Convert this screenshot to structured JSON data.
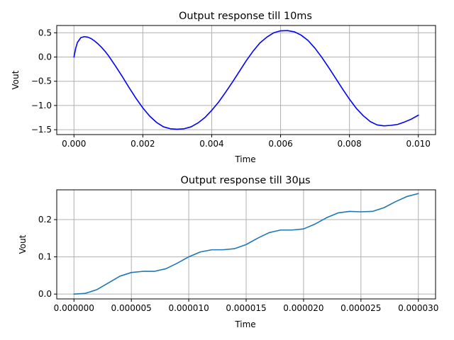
{
  "chart_data": [
    {
      "type": "line",
      "title": "Output response till 10ms",
      "xlabel": "Time",
      "ylabel": "Vout",
      "xlim": [
        -0.0005,
        0.0105
      ],
      "ylim": [
        -1.6,
        0.65
      ],
      "xticks": [
        0.0,
        0.002,
        0.004,
        0.006,
        0.008,
        0.01
      ],
      "xtick_labels": [
        "0.000",
        "0.002",
        "0.004",
        "0.006",
        "0.008",
        "0.010"
      ],
      "yticks": [
        0.5,
        0.0,
        -0.5,
        -1.0,
        -1.5
      ],
      "ytick_labels": [
        "0.5",
        "0.0",
        "−0.5",
        "−1.0",
        "−1.5"
      ],
      "grid": true,
      "series": [
        {
          "color": "#0000ff",
          "x": [
            0.0,
            5e-05,
            0.0001,
            0.0002,
            0.0003,
            0.0004,
            0.0005,
            0.0006,
            0.0007,
            0.0008,
            0.0009,
            0.001,
            0.0012,
            0.0014,
            0.0016,
            0.0018,
            0.002,
            0.0022,
            0.0024,
            0.0026,
            0.0028,
            0.003,
            0.0032,
            0.0034,
            0.0036,
            0.0038,
            0.004,
            0.0042,
            0.0044,
            0.0046,
            0.0048,
            0.005,
            0.0052,
            0.0054,
            0.0056,
            0.0058,
            0.006,
            0.0062,
            0.0064,
            0.0066,
            0.0068,
            0.007,
            0.0072,
            0.0074,
            0.0076,
            0.0078,
            0.008,
            0.0082,
            0.0084,
            0.0086,
            0.0088,
            0.009,
            0.0092,
            0.0094,
            0.0096,
            0.0098,
            0.01
          ],
          "y": [
            0.0,
            0.18,
            0.3,
            0.4,
            0.42,
            0.41,
            0.38,
            0.33,
            0.27,
            0.2,
            0.12,
            0.03,
            -0.18,
            -0.4,
            -0.63,
            -0.85,
            -1.05,
            -1.22,
            -1.35,
            -1.44,
            -1.48,
            -1.49,
            -1.48,
            -1.44,
            -1.36,
            -1.25,
            -1.1,
            -0.93,
            -0.73,
            -0.52,
            -0.3,
            -0.08,
            0.12,
            0.29,
            0.41,
            0.5,
            0.54,
            0.545,
            0.52,
            0.45,
            0.34,
            0.18,
            -0.01,
            -0.22,
            -0.44,
            -0.66,
            -0.87,
            -1.06,
            -1.21,
            -1.33,
            -1.4,
            -1.42,
            -1.41,
            -1.39,
            -1.34,
            -1.28,
            -1.2
          ]
        }
      ]
    },
    {
      "type": "line",
      "title": "Output response till 30µs",
      "xlabel": "Time",
      "ylabel": "Vout",
      "xlim": [
        -1.5e-06,
        3.15e-05
      ],
      "ylim": [
        -0.013,
        0.28
      ],
      "xticks": [
        0.0,
        5e-06,
        1e-05,
        1.5e-05,
        2e-05,
        2.5e-05,
        3e-05
      ],
      "xtick_labels": [
        "0.000000",
        "0.000005",
        "0.000010",
        "0.000015",
        "0.000020",
        "0.000025",
        "0.000030"
      ],
      "yticks": [
        0.0,
        0.1,
        0.2
      ],
      "ytick_labels": [
        "0.0",
        "0.1",
        "0.2"
      ],
      "grid": true,
      "series": [
        {
          "color": "#1f77b4",
          "x": [
            0.0,
            1e-06,
            2e-06,
            3e-06,
            4e-06,
            5e-06,
            6e-06,
            7e-06,
            8e-06,
            9e-06,
            1e-05,
            1.1e-05,
            1.2e-05,
            1.3e-05,
            1.4e-05,
            1.5e-05,
            1.6e-05,
            1.7e-05,
            1.8e-05,
            1.9e-05,
            2e-05,
            2.1e-05,
            2.2e-05,
            2.3e-05,
            2.4e-05,
            2.5e-05,
            2.6e-05,
            2.7e-05,
            2.8e-05,
            2.9e-05,
            3e-05
          ],
          "y": [
            0.0,
            0.002,
            0.012,
            0.03,
            0.048,
            0.058,
            0.061,
            0.061,
            0.068,
            0.083,
            0.1,
            0.113,
            0.119,
            0.119,
            0.122,
            0.133,
            0.15,
            0.165,
            0.172,
            0.172,
            0.175,
            0.188,
            0.205,
            0.218,
            0.222,
            0.221,
            0.222,
            0.232,
            0.248,
            0.262,
            0.27
          ]
        }
      ]
    }
  ]
}
